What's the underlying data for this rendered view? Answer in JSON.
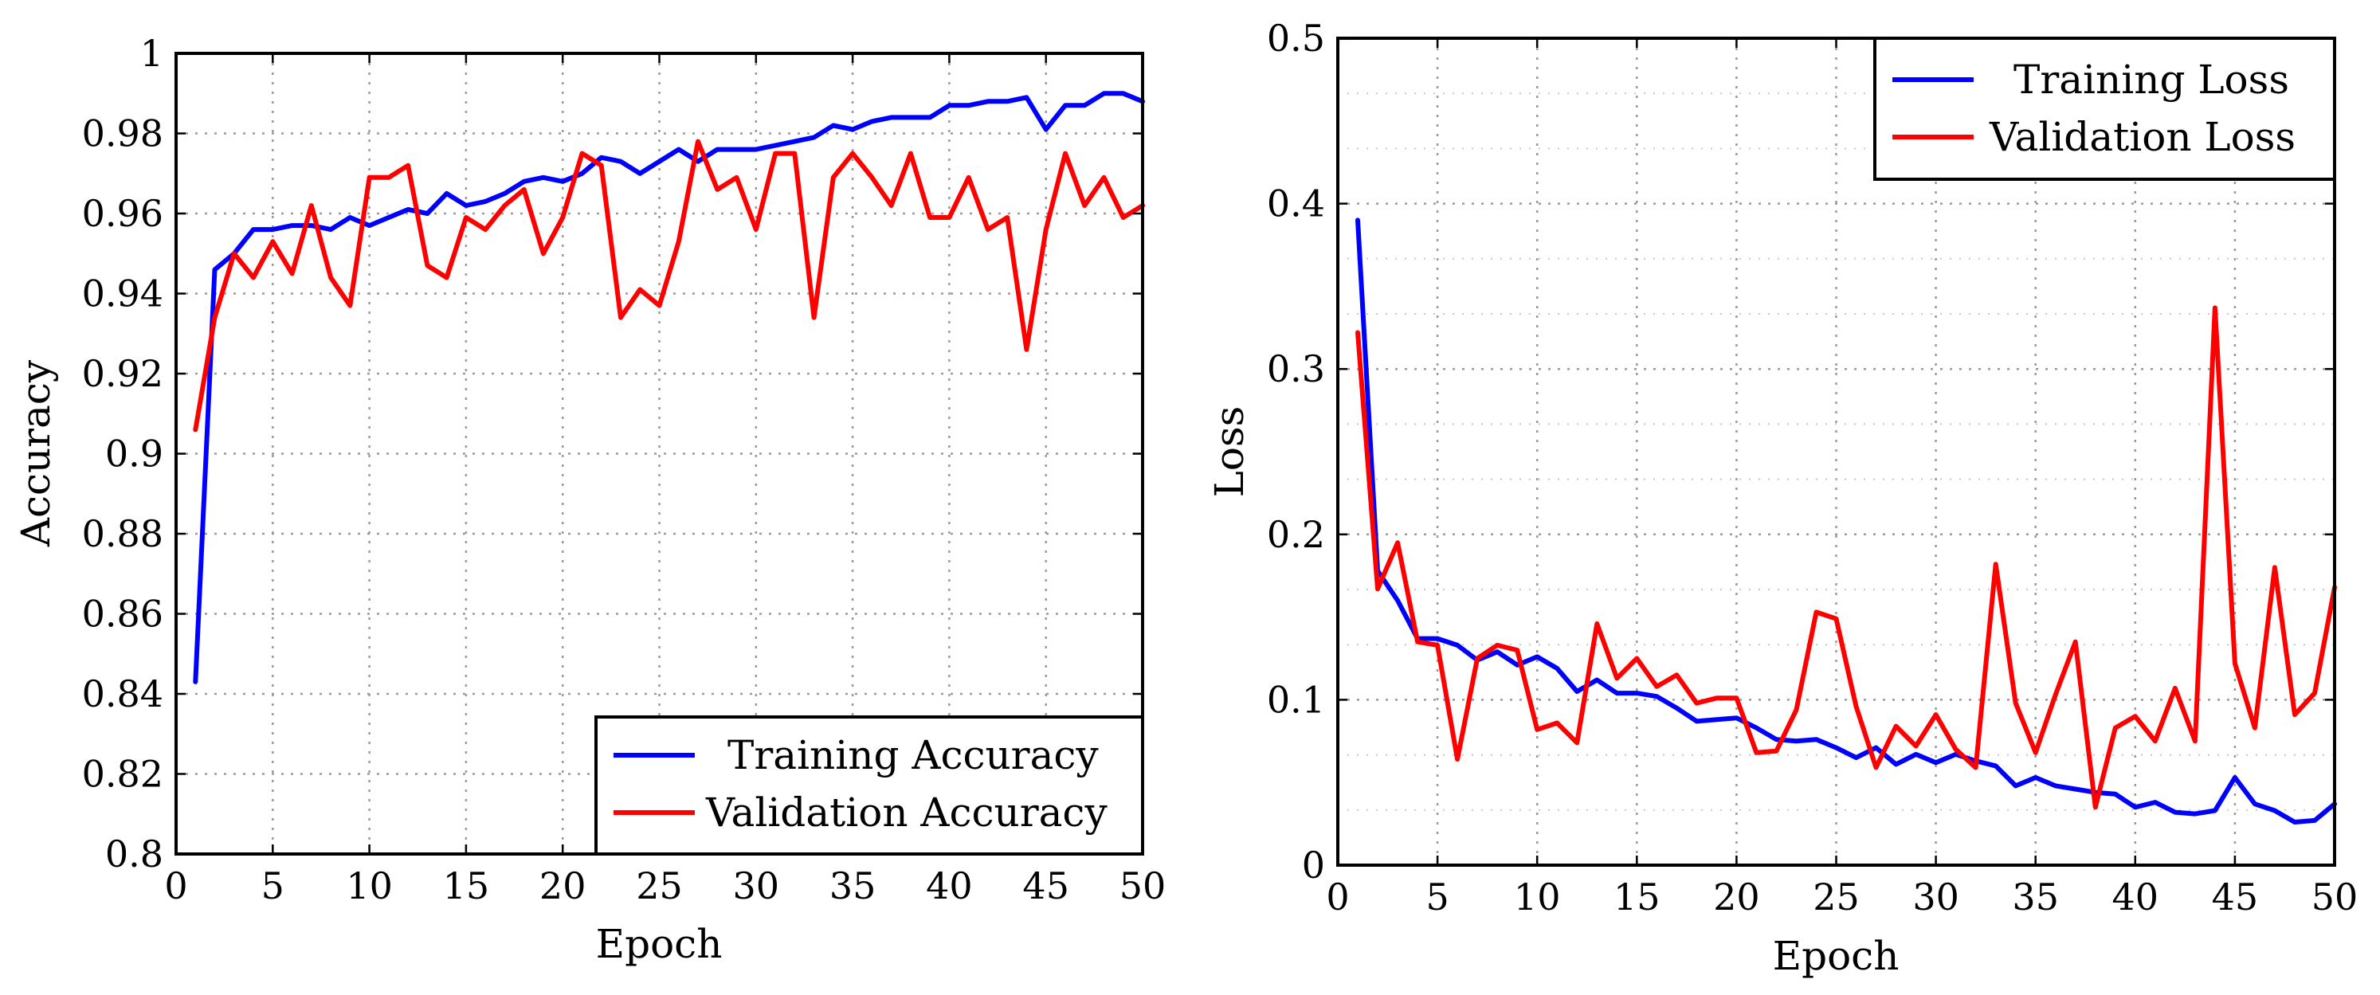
{
  "chart_data": [
    {
      "type": "line",
      "xlabel": "Epoch",
      "ylabel": "Accuracy",
      "xlim": [
        0,
        50
      ],
      "ylim": [
        0.8,
        1.0
      ],
      "x_ticks": [
        "0",
        "5",
        "10",
        "15",
        "20",
        "25",
        "30",
        "35",
        "40",
        "45",
        "50"
      ],
      "y_ticks": [
        "0.8",
        "0.82",
        "0.84",
        "0.86",
        "0.88",
        "0.9",
        "0.92",
        "0.94",
        "0.96",
        "0.98",
        "1"
      ],
      "grid": true,
      "legend_position": "bottom-right",
      "x": [
        1,
        2,
        3,
        4,
        5,
        6,
        7,
        8,
        9,
        10,
        11,
        12,
        13,
        14,
        15,
        16,
        17,
        18,
        19,
        20,
        21,
        22,
        23,
        24,
        25,
        26,
        27,
        28,
        29,
        30,
        31,
        32,
        33,
        34,
        35,
        36,
        37,
        38,
        39,
        40,
        41,
        42,
        43,
        44,
        45,
        46,
        47,
        48,
        49,
        50
      ],
      "series": [
        {
          "name": "Training Accuracy",
          "color": "#0000ff",
          "values": [
            0.843,
            0.946,
            0.95,
            0.956,
            0.956,
            0.957,
            0.957,
            0.956,
            0.959,
            0.957,
            0.959,
            0.961,
            0.96,
            0.965,
            0.962,
            0.963,
            0.965,
            0.968,
            0.969,
            0.968,
            0.97,
            0.974,
            0.973,
            0.97,
            0.973,
            0.976,
            0.973,
            0.976,
            0.976,
            0.976,
            0.977,
            0.978,
            0.979,
            0.982,
            0.981,
            0.983,
            0.984,
            0.984,
            0.984,
            0.987,
            0.987,
            0.988,
            0.988,
            0.989,
            0.981,
            0.987,
            0.987,
            0.99,
            0.99,
            0.988
          ]
        },
        {
          "name": "Validation Accuracy",
          "color": "#ff0000",
          "values": [
            0.906,
            0.934,
            0.95,
            0.944,
            0.953,
            0.945,
            0.962,
            0.944,
            0.937,
            0.969,
            0.969,
            0.972,
            0.947,
            0.944,
            0.959,
            0.956,
            0.962,
            0.966,
            0.95,
            0.959,
            0.975,
            0.972,
            0.934,
            0.941,
            0.937,
            0.953,
            0.978,
            0.966,
            0.969,
            0.956,
            0.975,
            0.975,
            0.934,
            0.969,
            0.975,
            0.969,
            0.962,
            0.975,
            0.959,
            0.959,
            0.969,
            0.956,
            0.959,
            0.926,
            0.956,
            0.975,
            0.962,
            0.969,
            0.959,
            0.962
          ]
        }
      ]
    },
    {
      "type": "line",
      "xlabel": "Epoch",
      "ylabel": "Loss",
      "xlim": [
        0,
        50
      ],
      "ylim": [
        0,
        0.5
      ],
      "x_ticks": [
        "0",
        "5",
        "10",
        "15",
        "20",
        "25",
        "30",
        "35",
        "40",
        "45",
        "50"
      ],
      "y_ticks": [
        "0",
        "0.1",
        "0.2",
        "0.3",
        "0.4",
        "0.5"
      ],
      "grid": true,
      "legend_position": "top-right",
      "x": [
        1,
        2,
        3,
        4,
        5,
        6,
        7,
        8,
        9,
        10,
        11,
        12,
        13,
        14,
        15,
        16,
        17,
        18,
        19,
        20,
        21,
        22,
        23,
        24,
        25,
        26,
        27,
        28,
        29,
        30,
        31,
        32,
        33,
        34,
        35,
        36,
        37,
        38,
        39,
        40,
        41,
        42,
        43,
        44,
        45,
        46,
        47,
        48,
        49,
        50
      ],
      "series": [
        {
          "name": "Training Loss",
          "color": "#0000ff",
          "values": [
            0.39,
            0.178,
            0.16,
            0.137,
            0.137,
            0.133,
            0.124,
            0.129,
            0.121,
            0.126,
            0.119,
            0.105,
            0.112,
            0.104,
            0.104,
            0.102,
            0.095,
            0.087,
            0.088,
            0.089,
            0.083,
            0.076,
            0.075,
            0.076,
            0.071,
            0.065,
            0.071,
            0.061,
            0.067,
            0.062,
            0.067,
            0.063,
            0.06,
            0.048,
            0.053,
            0.048,
            0.046,
            0.044,
            0.043,
            0.035,
            0.038,
            0.032,
            0.031,
            0.033,
            0.053,
            0.037,
            0.033,
            0.026,
            0.027,
            0.037
          ]
        },
        {
          "name": "Validation Loss",
          "color": "#ff0000",
          "values": [
            0.322,
            0.167,
            0.195,
            0.135,
            0.133,
            0.064,
            0.125,
            0.133,
            0.13,
            0.082,
            0.086,
            0.074,
            0.146,
            0.113,
            0.125,
            0.108,
            0.115,
            0.098,
            0.101,
            0.101,
            0.068,
            0.069,
            0.094,
            0.153,
            0.149,
            0.096,
            0.059,
            0.084,
            0.072,
            0.091,
            0.07,
            0.059,
            0.182,
            0.098,
            0.068,
            0.103,
            0.135,
            0.035,
            0.083,
            0.09,
            0.075,
            0.107,
            0.075,
            0.337,
            0.122,
            0.083,
            0.18,
            0.091,
            0.104,
            0.168
          ]
        }
      ]
    }
  ]
}
